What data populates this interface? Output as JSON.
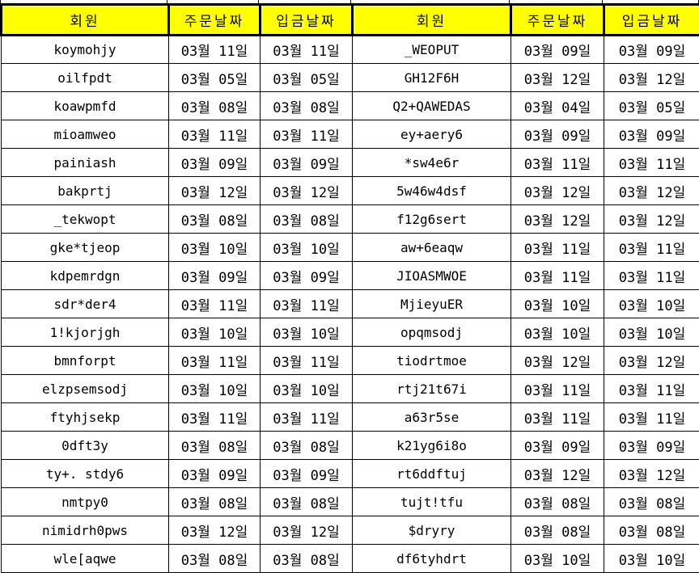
{
  "colors": {
    "header_bg": "#ffff00",
    "border": "#000000",
    "text": "#000000",
    "bg": "#ffffff"
  },
  "table": {
    "headers": [
      "회원",
      "주문날짜",
      "입금날짜",
      "회원",
      "주문날짜",
      "입금날짜"
    ],
    "rows": [
      [
        "koymohjy",
        "03월 11일",
        "03월 11일",
        "_WEOPUT",
        "03월 09일",
        "03월 09일"
      ],
      [
        "oilfpdt",
        "03월 05일",
        "03월 05일",
        "GH12F6H",
        "03월 12일",
        "03월 12일"
      ],
      [
        "koawpmfd",
        "03월 08일",
        "03월 08일",
        "Q2+QAWEDAS",
        "03월 04일",
        "03월 05일"
      ],
      [
        "mioamweo",
        "03월 11일",
        "03월 11일",
        "ey+aery6",
        "03월 09일",
        "03월 09일"
      ],
      [
        "painiash",
        "03월 09일",
        "03월 09일",
        "*sw4e6r",
        "03월 11일",
        "03월 11일"
      ],
      [
        "bakprtj",
        "03월 12일",
        "03월 12일",
        "5w46w4dsf",
        "03월 12일",
        "03월 12일"
      ],
      [
        "_tekwopt",
        "03월 08일",
        "03월 08일",
        "f12g6sert",
        "03월 12일",
        "03월 12일"
      ],
      [
        "gke*tjeop",
        "03월 10일",
        "03월 10일",
        "aw+6eaqw",
        "03월 11일",
        "03월 11일"
      ],
      [
        "kdpemrdgn",
        "03월 09일",
        "03월 09일",
        "JIOASMWOE",
        "03월 11일",
        "03월 11일"
      ],
      [
        "sdr*der4",
        "03월 11일",
        "03월 11일",
        "MjieyuER",
        "03월 10일",
        "03월 10일"
      ],
      [
        "1!kjorjgh",
        "03월 10일",
        "03월 10일",
        "opqmsodj",
        "03월 10일",
        "03월 10일"
      ],
      [
        "bmnforpt",
        "03월 11일",
        "03월 11일",
        "tiodrtmoe",
        "03월 12일",
        "03월 12일"
      ],
      [
        "elzpsemsodj",
        "03월 10일",
        "03월 10일",
        "rtj21t67i",
        "03월 11일",
        "03월 11일"
      ],
      [
        "ftyhjsekp",
        "03월 11일",
        "03월 11일",
        "a63r5se",
        "03월 11일",
        "03월 11일"
      ],
      [
        "0dft3y",
        "03월 08일",
        "03월 08일",
        "k21yg6i8o",
        "03월 09일",
        "03월 09일"
      ],
      [
        "ty+. stdy6",
        "03월 09일",
        "03월 09일",
        "rt6ddftuj",
        "03월 12일",
        "03월 12일"
      ],
      [
        "nmtpy0",
        "03월 08일",
        "03월 08일",
        "tujt!tfu",
        "03월 08일",
        "03월 08일"
      ],
      [
        "nimidrh0pws",
        "03월 12일",
        "03월 12일",
        "$dryry",
        "03월 08일",
        "03월 08일"
      ],
      [
        "wle[aqwe",
        "03월 08일",
        "03월 08일",
        "df6tyhdrt",
        "03월 10일",
        "03월 10일"
      ]
    ]
  }
}
